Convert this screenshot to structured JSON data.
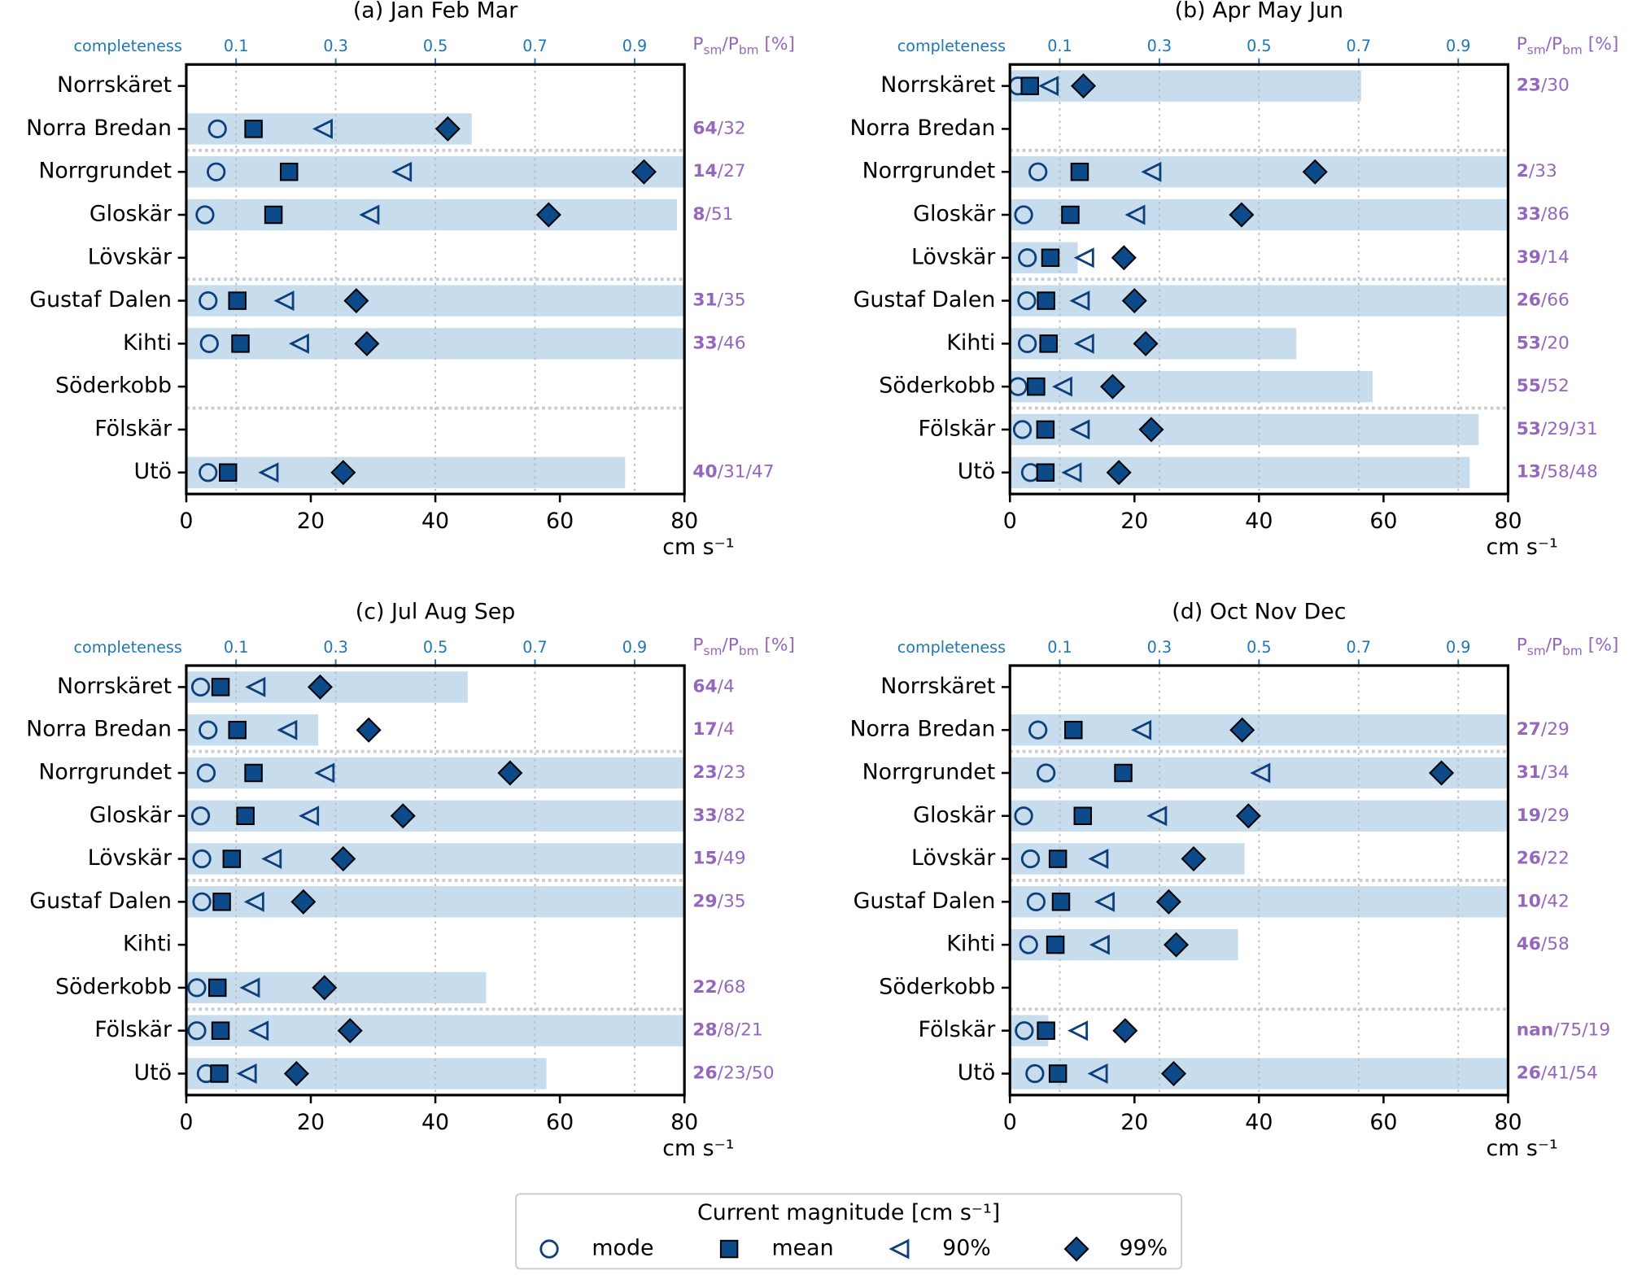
{
  "chart_data": [
    {
      "type": "dot",
      "title": "(a) Jan Feb Mar",
      "categories": [
        "Norrskäret",
        "Norra Bredan",
        "Norrgrundet",
        "Gloskär",
        "Lövskär",
        "Gustaf Dalen",
        "Kihti",
        "Söderkobb",
        "Fölskär",
        "Utö"
      ],
      "series": [
        {
          "name": "mode",
          "marker": "circle",
          "filled": false,
          "color": "#0d3f7a",
          "values": [
            null,
            5,
            4.8,
            3,
            null,
            3.5,
            3.7,
            null,
            null,
            3.5
          ]
        },
        {
          "name": "mean",
          "marker": "square",
          "filled": true,
          "color": "#0d4a8a",
          "values": [
            null,
            10.8,
            16.5,
            14,
            null,
            8.2,
            8.7,
            null,
            null,
            6.7
          ]
        },
        {
          "name": "90%",
          "marker": "triangle-left",
          "filled": false,
          "color": "#0d3f7a",
          "values": [
            null,
            22,
            34.7,
            29.5,
            null,
            15.8,
            18.2,
            null,
            null,
            13.3
          ]
        },
        {
          "name": "99%",
          "marker": "diamond",
          "filled": true,
          "color": "#0d4a8a",
          "values": [
            null,
            42,
            73.5,
            58.2,
            null,
            27.3,
            29,
            null,
            null,
            25.2
          ]
        }
      ],
      "xlim": [
        0,
        80
      ],
      "xticks": [
        0,
        20,
        40,
        60,
        80
      ],
      "xlabel": "cm s⁻¹",
      "completeness": {
        "label": "completeness",
        "color": "#c7dded",
        "label_color": "#1f77b4",
        "xlim": [
          0,
          1
        ],
        "xticks": [
          0.1,
          0.3,
          0.5,
          0.7,
          0.9
        ],
        "values": [
          null,
          0.573,
          1.0,
          0.985,
          null,
          1.0,
          1.0,
          null,
          null,
          0.881
        ]
      },
      "ratio_header": [
        "P",
        "sm",
        "/P",
        "bm",
        " [%]"
      ],
      "ratio_color": "#9467bd",
      "ratio_labels": [
        null,
        [
          "64",
          "/32"
        ],
        [
          "14",
          "/27"
        ],
        [
          "8",
          "/51"
        ],
        null,
        [
          "31",
          "/35"
        ],
        [
          "33",
          "/46"
        ],
        null,
        null,
        [
          "40",
          "/31/47"
        ]
      ]
    },
    {
      "type": "dot",
      "title": "(b) Apr May Jun",
      "categories": [
        "Norrskäret",
        "Norra Bredan",
        "Norrgrundet",
        "Gloskär",
        "Lövskär",
        "Gustaf Dalen",
        "Kihti",
        "Söderkobb",
        "Fölskär",
        "Utö"
      ],
      "series": [
        {
          "name": "mode",
          "marker": "circle",
          "filled": false,
          "color": "#0d3f7a",
          "values": [
            1.3,
            null,
            4.5,
            2.2,
            2.8,
            2.7,
            2.8,
            1.3,
            2,
            3.3
          ]
        },
        {
          "name": "mean",
          "marker": "square",
          "filled": true,
          "color": "#0d4a8a",
          "values": [
            3.2,
            null,
            11.2,
            9.7,
            6.5,
            5.8,
            6.2,
            4.2,
            5.7,
            5.7
          ]
        },
        {
          "name": "90%",
          "marker": "triangle-left",
          "filled": false,
          "color": "#0d3f7a",
          "values": [
            6.3,
            null,
            22.8,
            20.2,
            12,
            11.3,
            12,
            8.5,
            11.3,
            10
          ]
        },
        {
          "name": "99%",
          "marker": "diamond",
          "filled": true,
          "color": "#0d4a8a",
          "values": [
            11.8,
            null,
            49,
            37.2,
            18.3,
            20,
            21.8,
            16.5,
            22.7,
            17.5
          ]
        }
      ],
      "xlim": [
        0,
        80
      ],
      "xticks": [
        0,
        20,
        40,
        60,
        80
      ],
      "xlabel": "cm s⁻¹",
      "completeness": {
        "label": "completeness",
        "color": "#c7dded",
        "label_color": "#1f77b4",
        "xlim": [
          0,
          1
        ],
        "xticks": [
          0.1,
          0.3,
          0.5,
          0.7,
          0.9
        ],
        "values": [
          0.705,
          null,
          1.0,
          1.0,
          0.136,
          1.0,
          0.575,
          0.728,
          0.941,
          0.923
        ]
      },
      "ratio_header": [
        "P",
        "sm",
        "/P",
        "bm",
        " [%]"
      ],
      "ratio_color": "#9467bd",
      "ratio_labels": [
        [
          "23",
          "/30"
        ],
        null,
        [
          "2",
          "/33"
        ],
        [
          "33",
          "/86"
        ],
        [
          "39",
          "/14"
        ],
        [
          "26",
          "/66"
        ],
        [
          "53",
          "/20"
        ],
        [
          "55",
          "/52"
        ],
        [
          "53",
          "/29/31"
        ],
        [
          "13",
          "/58/48"
        ]
      ]
    },
    {
      "type": "dot",
      "title": "(c) Jul Aug Sep",
      "categories": [
        "Norrskäret",
        "Norra Bredan",
        "Norrgrundet",
        "Gloskär",
        "Lövskär",
        "Gustaf Dalen",
        "Kihti",
        "Söderkobb",
        "Fölskär",
        "Utö"
      ],
      "series": [
        {
          "name": "mode",
          "marker": "circle",
          "filled": false,
          "color": "#0d3f7a",
          "values": [
            2.3,
            3.5,
            3.2,
            2.3,
            2.5,
            2.5,
            null,
            1.7,
            1.7,
            3.2
          ]
        },
        {
          "name": "mean",
          "marker": "square",
          "filled": true,
          "color": "#0d4a8a",
          "values": [
            5.5,
            8.2,
            10.8,
            9.5,
            7.3,
            5.7,
            null,
            5,
            5.5,
            5.3
          ]
        },
        {
          "name": "90%",
          "marker": "triangle-left",
          "filled": false,
          "color": "#0d3f7a",
          "values": [
            11.2,
            16.3,
            22.3,
            19.8,
            13.8,
            11,
            null,
            10.3,
            11.7,
            9.8
          ]
        },
        {
          "name": "99%",
          "marker": "diamond",
          "filled": true,
          "color": "#0d4a8a",
          "values": [
            21.5,
            29.3,
            52,
            34.8,
            25.2,
            18.8,
            null,
            22.2,
            26.3,
            17.7
          ]
        }
      ],
      "xlim": [
        0,
        80
      ],
      "xticks": [
        0,
        20,
        40,
        60,
        80
      ],
      "xlabel": "cm s⁻¹",
      "completeness": {
        "label": "completeness",
        "color": "#c7dded",
        "label_color": "#1f77b4",
        "xlim": [
          0,
          1
        ],
        "xticks": [
          0.1,
          0.3,
          0.5,
          0.7,
          0.9
        ],
        "values": [
          0.565,
          0.265,
          1.0,
          1.0,
          1.0,
          1.0,
          null,
          0.602,
          1.0,
          0.723
        ]
      },
      "ratio_header": [
        "P",
        "sm",
        "/P",
        "bm",
        " [%]"
      ],
      "ratio_color": "#9467bd",
      "ratio_labels": [
        [
          "64",
          "/4"
        ],
        [
          "17",
          "/4"
        ],
        [
          "23",
          "/23"
        ],
        [
          "33",
          "/82"
        ],
        [
          "15",
          "/49"
        ],
        [
          "29",
          "/35"
        ],
        null,
        [
          "22",
          "/68"
        ],
        [
          "28",
          "/8/21"
        ],
        [
          "26",
          "/23/50"
        ]
      ]
    },
    {
      "type": "dot",
      "title": "(d) Oct Nov Dec",
      "categories": [
        "Norrskäret",
        "Norra Bredan",
        "Norrgrundet",
        "Gloskär",
        "Lövskär",
        "Gustaf Dalen",
        "Kihti",
        "Söderkobb",
        "Fölskär",
        "Utö"
      ],
      "series": [
        {
          "name": "mode",
          "marker": "circle",
          "filled": false,
          "color": "#0d3f7a",
          "values": [
            null,
            4.5,
            5.8,
            2.2,
            3.3,
            4.2,
            3,
            null,
            2.3,
            4
          ]
        },
        {
          "name": "mean",
          "marker": "square",
          "filled": true,
          "color": "#0d4a8a",
          "values": [
            null,
            10.2,
            18.2,
            11.7,
            7.7,
            8.2,
            7.3,
            null,
            5.8,
            7.7
          ]
        },
        {
          "name": "90%",
          "marker": "triangle-left",
          "filled": false,
          "color": "#0d3f7a",
          "values": [
            null,
            21.2,
            40.3,
            23.7,
            14.3,
            15.3,
            14.5,
            null,
            11,
            14.2
          ]
        },
        {
          "name": "99%",
          "marker": "diamond",
          "filled": true,
          "color": "#0d4a8a",
          "values": [
            null,
            37.3,
            69.3,
            38.3,
            29.5,
            25.5,
            26.7,
            null,
            18.5,
            26.3
          ]
        }
      ],
      "xlim": [
        0,
        80
      ],
      "xticks": [
        0,
        20,
        40,
        60,
        80
      ],
      "xlabel": "cm s⁻¹",
      "completeness": {
        "label": "completeness",
        "color": "#c7dded",
        "label_color": "#1f77b4",
        "xlim": [
          0,
          1
        ],
        "xticks": [
          0.1,
          0.3,
          0.5,
          0.7,
          0.9
        ],
        "values": [
          null,
          1.0,
          1.0,
          1.0,
          0.471,
          1.0,
          0.458,
          null,
          0.077,
          1.0
        ]
      },
      "ratio_header": [
        "P",
        "sm",
        "/P",
        "bm",
        " [%]"
      ],
      "ratio_color": "#9467bd",
      "ratio_labels": [
        null,
        [
          "27",
          "/29"
        ],
        [
          "31",
          "/34"
        ],
        [
          "19",
          "/29"
        ],
        [
          "26",
          "/22"
        ],
        [
          "10",
          "/42"
        ],
        [
          "46",
          "/58"
        ],
        null,
        [
          "nan",
          "/75/19"
        ],
        [
          "26",
          "/41/54"
        ]
      ]
    }
  ],
  "legend": {
    "title": "Current magnitude [cm s⁻¹]"
  }
}
